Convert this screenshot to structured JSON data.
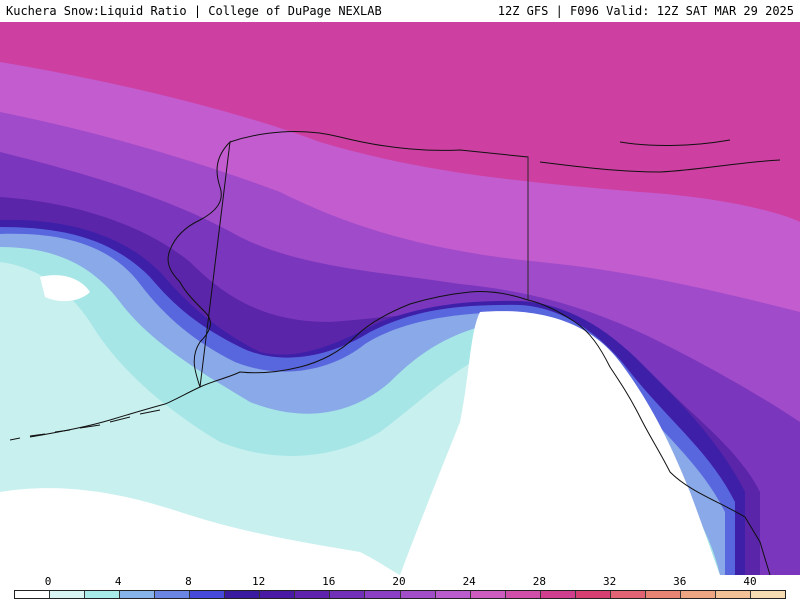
{
  "header": {
    "title": "Kuchera Snow:Liquid Ratio | College of DuPage NEXLAB",
    "valid": "12Z GFS | F096 Valid: 12Z SAT MAR 29 2025"
  },
  "colorbar": {
    "ticks": [
      "0",
      "4",
      "8",
      "12",
      "16",
      "20",
      "24",
      "28",
      "32",
      "36",
      "40"
    ],
    "colors": [
      "#ffffff",
      "#d8f5f3",
      "#a9ebe9",
      "#87b3ea",
      "#6a86e2",
      "#4649da",
      "#3a1a9e",
      "#4a1aa5",
      "#5e22ad",
      "#7230b8",
      "#8a3fc4",
      "#a24ec9",
      "#bb5ccd",
      "#cc5cbf",
      "#d04fa9",
      "#cf3f8e",
      "#d63f72",
      "#e06474",
      "#e88473",
      "#eea583",
      "#f3c397",
      "#f7dcb3"
    ]
  },
  "map": {
    "palette": {
      "ocean_white": "#ffffff",
      "ocean_cyan": "#c8f0ef",
      "ocean_teal": "#a6e6e6",
      "ocean_blue": "#8aa9e8",
      "blue": "#5967de",
      "indigo": "#3d1fa8",
      "purple_dark": "#5a25a8",
      "purple": "#7a36bd",
      "violet": "#a04bc9",
      "orchid": "#c35ccf",
      "magenta_light": "#d66cd8",
      "pink": "#d24fb4",
      "magenta": "#cd3fa0",
      "magenta_deep": "#c72e8a"
    }
  }
}
